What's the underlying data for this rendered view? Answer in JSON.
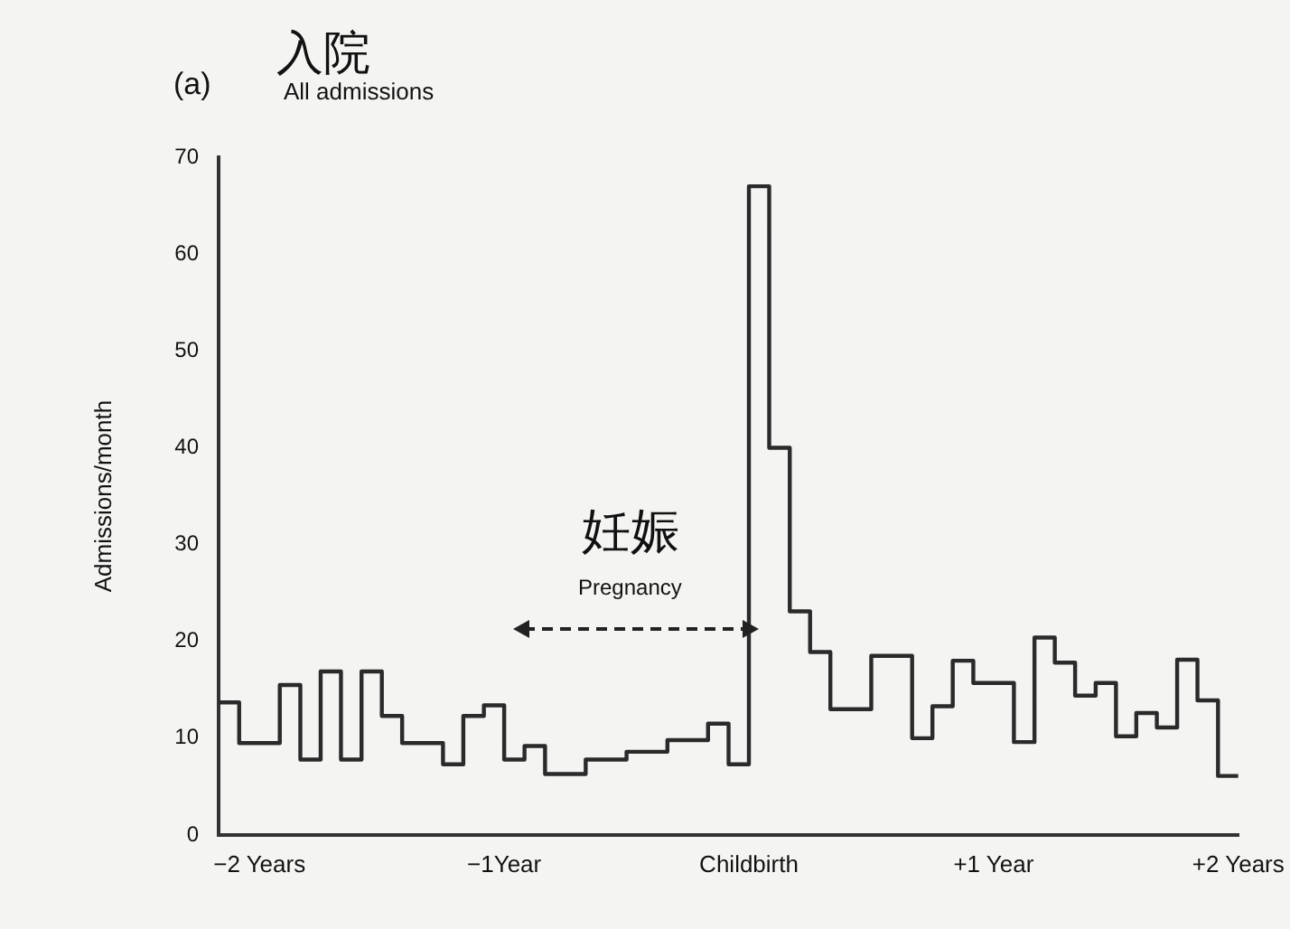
{
  "chart_data": {
    "type": "step",
    "title": "All admissions",
    "ylabel": "Admissions/month",
    "annotations": [
      "(a)",
      "入院",
      "妊娠",
      "Pregnancy"
    ],
    "x": [
      -2.167,
      -2.083,
      -2,
      -1.917,
      -1.833,
      -1.75,
      -1.667,
      -1.583,
      -1.5,
      -1.417,
      -1.333,
      -1.25,
      -1.167,
      -1.083,
      -1,
      -0.917,
      -0.833,
      -0.75,
      -0.667,
      -0.583,
      -0.5,
      -0.417,
      -0.333,
      -0.25,
      -0.167,
      -0.083,
      0,
      0.083,
      0.167,
      0.25,
      0.333,
      0.417,
      0.5,
      0.583,
      0.667,
      0.75,
      0.833,
      0.917,
      1,
      1.083,
      1.167,
      1.25,
      1.333,
      1.417,
      1.5,
      1.583,
      1.667,
      1.75,
      1.833,
      1.917,
      2
    ],
    "values": [
      13.7,
      9.5,
      9.5,
      15.5,
      7.8,
      16.9,
      7.8,
      16.9,
      12.3,
      9.5,
      9.5,
      7.3,
      12.3,
      13.4,
      7.8,
      9.2,
      6.3,
      6.3,
      7.8,
      7.8,
      8.6,
      8.6,
      9.8,
      9.8,
      11.5,
      7.3,
      67,
      40,
      23.1,
      18.9,
      13,
      13,
      18.5,
      18.5,
      10,
      13.3,
      18,
      15.7,
      15.7,
      9.6,
      20.4,
      17.8,
      14.4,
      15.7,
      10.2,
      12.6,
      11.1,
      18.1,
      13.9,
      6.1,
      6.1
    ],
    "color": "#2a2a2a",
    "line_style": "solid",
    "marker": "none",
    "grid": false,
    "legend": false,
    "xlim": [
      -2.167,
      2
    ],
    "xticks": [
      {
        "value": -2,
        "label": "−2 Years"
      },
      {
        "value": -1,
        "label": "−1Year"
      },
      {
        "value": 0,
        "label": "Childbirth"
      },
      {
        "value": 1,
        "label": "+1 Year"
      },
      {
        "value": 2,
        "label": "+2 Years"
      }
    ],
    "ylim": [
      0,
      70
    ],
    "yticks": [
      0,
      10,
      20,
      30,
      40,
      50,
      60,
      70
    ]
  }
}
